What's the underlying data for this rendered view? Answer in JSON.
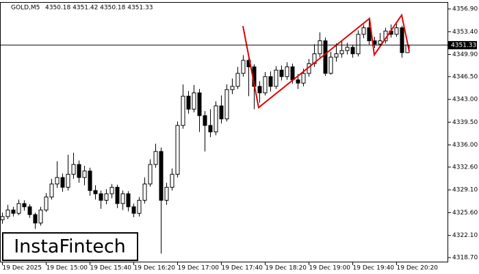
{
  "chart_data": {
    "type": "candlestick",
    "header_symbol": "GOLD,M5",
    "header_ohlc": "4350.18 4351.42 4350.18 4351.33",
    "watermark": "InstaFintech",
    "last_price": 4351.33,
    "bull_color": "#ffffff",
    "bear_color": "#000000",
    "pattern_color": "#e00000",
    "ylim": [
      4318.7,
      4356.9
    ],
    "yticks": [
      {
        "value": 4356.9,
        "label": "4356.90"
      },
      {
        "value": 4353.4,
        "label": "4353.40"
      },
      {
        "value": 4349.9,
        "label": "4349.90"
      },
      {
        "value": 4346.5,
        "label": "4346.50"
      },
      {
        "value": 4343.0,
        "label": "4343.00"
      },
      {
        "value": 4339.5,
        "label": "4339.50"
      },
      {
        "value": 4336.0,
        "label": "4336.00"
      },
      {
        "value": 4332.6,
        "label": "4332.60"
      },
      {
        "value": 4329.1,
        "label": "4329.10"
      },
      {
        "value": 4325.6,
        "label": "4325.60"
      },
      {
        "value": 4322.1,
        "label": "4322.10"
      },
      {
        "value": 4318.7,
        "label": "4318.70"
      }
    ],
    "xticks": [
      {
        "value": 0,
        "label": "19 Dec 2025"
      },
      {
        "value": 8,
        "label": "19 Dec 15:00"
      },
      {
        "value": 16,
        "label": "19 Dec 15:40"
      },
      {
        "value": 24,
        "label": "19 Dec 16:20"
      },
      {
        "value": 32,
        "label": "19 Dec 17:00"
      },
      {
        "value": 40,
        "label": "19 Dec 17:40"
      },
      {
        "value": 48,
        "label": "19 Dec 18:20"
      },
      {
        "value": 56,
        "label": "19 Dec 19:00"
      },
      {
        "value": 64,
        "label": "19 Dec 19:40"
      },
      {
        "value": 72,
        "label": "19 Dec 20:20"
      }
    ],
    "open": [
      4324.5,
      4325.0,
      4326.0,
      4325.5,
      4327.0,
      4326.5,
      4325.3,
      4324.0,
      4326.0,
      4328.0,
      4330.0,
      4331.0,
      4329.5,
      4331.5,
      4333.0,
      4331.0,
      4332.0,
      4329.0,
      4328.5,
      4327.5,
      4328.5,
      4329.5,
      4327.0,
      4328.5,
      4326.5,
      4325.5,
      4327.5,
      4330.0,
      4333.0,
      4335.0,
      4327.5,
      4329.5,
      4331.5,
      4339.0,
      4343.5,
      4341.5,
      4344.0,
      4340.5,
      4339.0,
      4338.0,
      4342.0,
      4340.0,
      4344.5,
      4345.0,
      4347.0,
      4349.0,
      4348.0,
      4345.0,
      4344.0,
      4346.5,
      4345.0,
      4347.5,
      4346.5,
      4348.0,
      4346.0,
      4345.5,
      4347.0,
      4348.5,
      4350.0,
      4352.0,
      4347.0,
      4349.5,
      4350.0,
      4350.5,
      4351.0,
      4350.0,
      4353.0,
      4354.0,
      4352.0,
      4351.5,
      4352.0,
      4353.5,
      4353.0,
      4354.0,
      4350.18
    ],
    "high": [
      4325.6,
      4326.8,
      4326.5,
      4327.6,
      4327.5,
      4326.9,
      4325.6,
      4326.5,
      4328.6,
      4330.8,
      4333.5,
      4331.6,
      4334.5,
      4334.8,
      4333.6,
      4332.8,
      4332.5,
      4329.8,
      4329.0,
      4329.2,
      4330.0,
      4329.9,
      4329.0,
      4328.9,
      4327.0,
      4328.0,
      4331.0,
      4333.8,
      4336.2,
      4335.6,
      4330.2,
      4332.4,
      4339.6,
      4345.3,
      4344.3,
      4345.2,
      4344.6,
      4341.2,
      4341.5,
      4342.7,
      4343.6,
      4345.3,
      4346.2,
      4348.0,
      4349.8,
      4349.5,
      4348.4,
      4345.8,
      4347.2,
      4347.3,
      4348.1,
      4348.2,
      4348.7,
      4348.5,
      4346.9,
      4347.7,
      4349.2,
      4351.5,
      4353.3,
      4352.5,
      4350.3,
      4351.6,
      4351.9,
      4351.7,
      4351.4,
      4353.6,
      4354.5,
      4355.3,
      4352.6,
      4353.2,
      4354.0,
      4354.5,
      4354.6,
      4354.3,
      4351.42
    ],
    "low": [
      4323.9,
      4324.6,
      4325.0,
      4325.2,
      4325.9,
      4324.8,
      4323.1,
      4323.6,
      4325.7,
      4327.6,
      4329.4,
      4328.8,
      4329.0,
      4330.8,
      4330.2,
      4329.8,
      4328.2,
      4327.6,
      4326.2,
      4326.9,
      4327.8,
      4326.3,
      4326.0,
      4325.8,
      4324.9,
      4325.0,
      4327.0,
      4329.6,
      4332.5,
      4319.3,
      4326.8,
      4329.0,
      4331.0,
      4338.5,
      4340.8,
      4341.0,
      4338.0,
      4335.0,
      4337.2,
      4337.5,
      4339.3,
      4339.6,
      4343.8,
      4344.6,
      4346.5,
      4343.5,
      4341.5,
      4342.5,
      4343.6,
      4344.2,
      4344.6,
      4345.9,
      4346.0,
      4345.4,
      4344.6,
      4345.0,
      4346.5,
      4348.0,
      4349.5,
      4346.6,
      4346.8,
      4348.8,
      4349.4,
      4349.9,
      4349.4,
      4349.6,
      4352.4,
      4351.4,
      4350.9,
      4351.0,
      4351.6,
      4352.5,
      4352.6,
      4349.4,
      4350.18
    ],
    "close": [
      4325.0,
      4326.0,
      4325.5,
      4327.0,
      4326.5,
      4325.3,
      4324.0,
      4326.0,
      4328.0,
      4330.0,
      4331.0,
      4329.5,
      4331.5,
      4333.0,
      4331.0,
      4332.0,
      4329.0,
      4328.5,
      4327.5,
      4328.5,
      4329.5,
      4327.0,
      4328.5,
      4326.5,
      4325.5,
      4327.5,
      4330.0,
      4333.0,
      4335.0,
      4327.5,
      4329.5,
      4331.5,
      4339.0,
      4343.5,
      4341.5,
      4344.0,
      4340.5,
      4339.0,
      4338.0,
      4342.0,
      4340.0,
      4344.5,
      4345.0,
      4347.0,
      4349.0,
      4348.0,
      4345.0,
      4344.0,
      4346.5,
      4345.0,
      4347.5,
      4346.5,
      4348.0,
      4346.0,
      4345.5,
      4347.0,
      4348.5,
      4350.0,
      4352.0,
      4347.0,
      4349.5,
      4350.0,
      4350.5,
      4351.0,
      4350.0,
      4353.0,
      4354.0,
      4352.0,
      4351.5,
      4352.0,
      4353.5,
      4353.0,
      4354.0,
      4350.18,
      4351.33
    ]
  }
}
